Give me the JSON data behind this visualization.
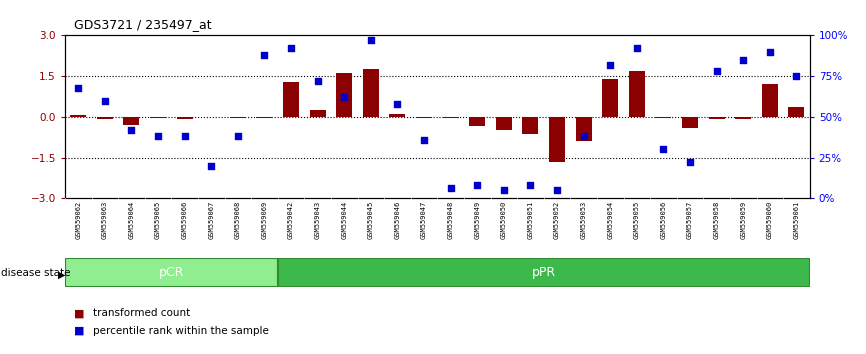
{
  "title": "GDS3721 / 235497_at",
  "samples": [
    "GSM559062",
    "GSM559063",
    "GSM559064",
    "GSM559065",
    "GSM559066",
    "GSM559067",
    "GSM559068",
    "GSM559069",
    "GSM559042",
    "GSM559043",
    "GSM559044",
    "GSM559045",
    "GSM559046",
    "GSM559047",
    "GSM559048",
    "GSM559049",
    "GSM559050",
    "GSM559051",
    "GSM559052",
    "GSM559053",
    "GSM559054",
    "GSM559055",
    "GSM559056",
    "GSM559057",
    "GSM559058",
    "GSM559059",
    "GSM559060",
    "GSM559061"
  ],
  "transformed_count": [
    0.05,
    -0.08,
    -0.3,
    -0.05,
    -0.08,
    -0.02,
    -0.05,
    -0.05,
    1.3,
    0.25,
    1.6,
    1.75,
    0.1,
    -0.05,
    -0.05,
    -0.35,
    -0.5,
    -0.65,
    -1.65,
    -0.9,
    1.4,
    1.7,
    -0.05,
    -0.4,
    -0.08,
    -0.08,
    1.2,
    0.35
  ],
  "percentile_rank": [
    68,
    60,
    42,
    38,
    38,
    20,
    38,
    88,
    92,
    72,
    62,
    97,
    58,
    36,
    6,
    8,
    5,
    8,
    5,
    38,
    82,
    92,
    30,
    22,
    78,
    85,
    90,
    75
  ],
  "pcr_count": 8,
  "ppr_count": 20,
  "ylim": [
    -3,
    3
  ],
  "yticks_left": [
    -3,
    -1.5,
    0,
    1.5,
    3
  ],
  "yticks_right": [
    0,
    25,
    50,
    75,
    100
  ],
  "hline_values": [
    -1.5,
    0,
    1.5
  ],
  "bar_color": "#8B0000",
  "dot_color": "#0000CD",
  "pcr_color": "#90EE90",
  "ppr_color": "#3CB94A",
  "tick_bg_color": "#C8C8C8",
  "legend_bar_label": "transformed count",
  "legend_dot_label": "percentile rank within the sample",
  "disease_state_label": "disease state",
  "pcr_label": "pCR",
  "ppr_label": "pPR"
}
